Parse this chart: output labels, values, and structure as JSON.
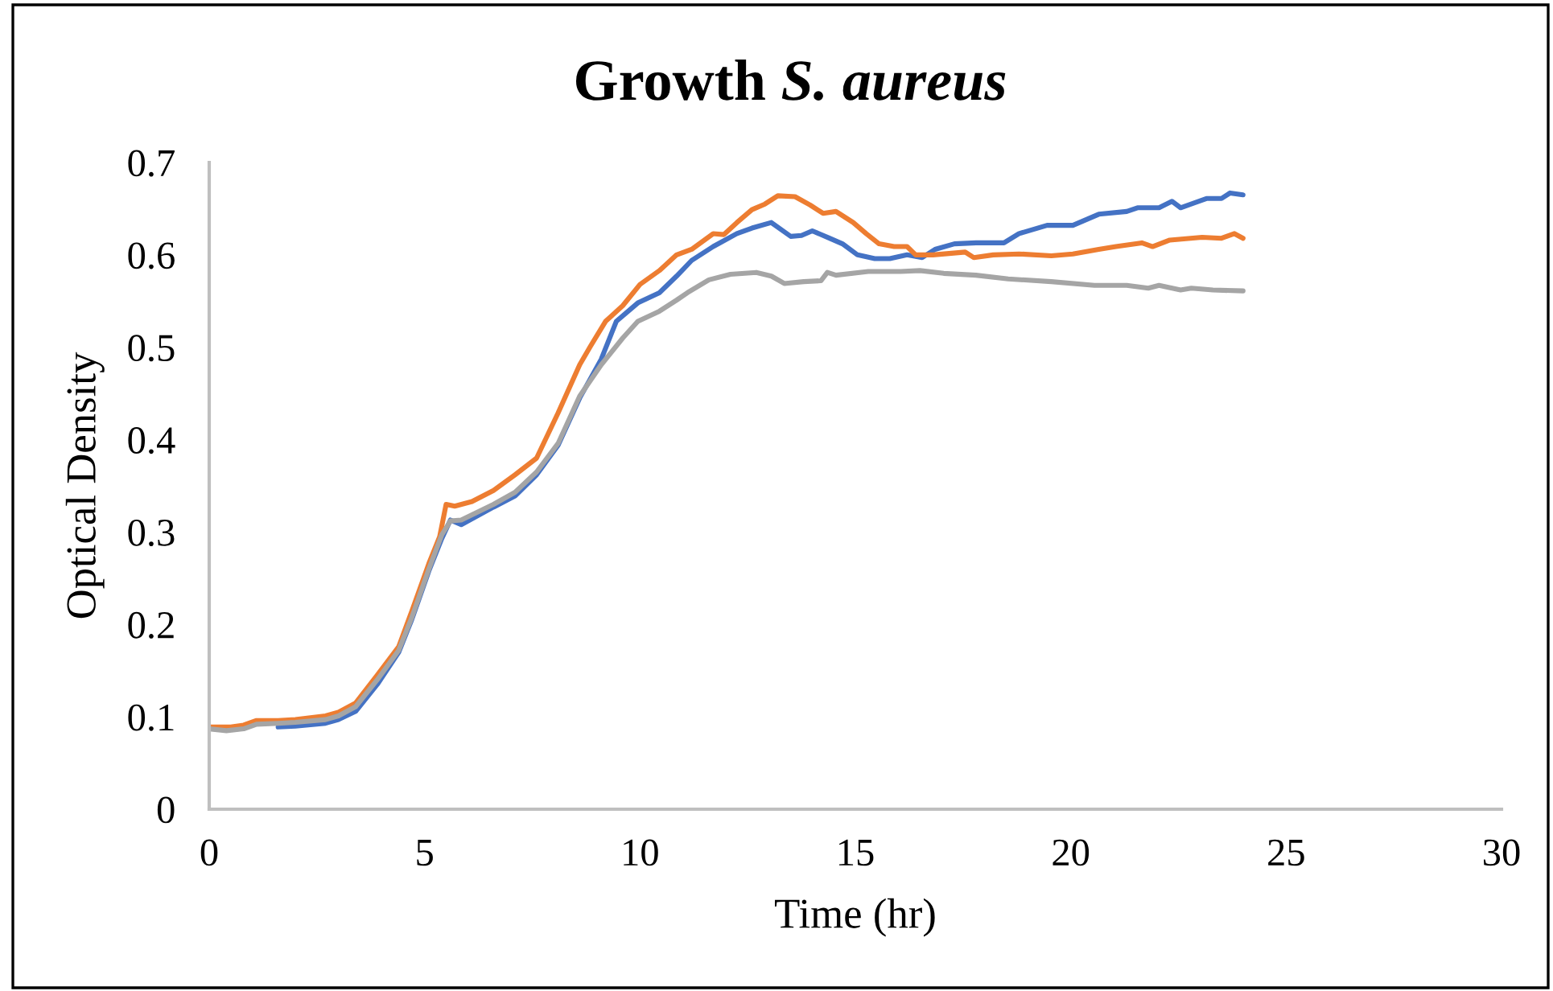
{
  "chart_data": {
    "type": "line",
    "title": "Growth S. aureus",
    "xlabel": "Time (hr)",
    "ylabel": "Optical Density",
    "xlim": [
      0,
      30
    ],
    "ylim": [
      0,
      0.7
    ],
    "xticks": [
      0,
      5,
      10,
      15,
      20,
      25,
      30
    ],
    "yticks": [
      0,
      0.1,
      0.2,
      0.3,
      0.4,
      0.5,
      0.6,
      0.7
    ],
    "series": [
      {
        "color": "#4472c4",
        "x": [
          1.6,
          2.0,
          2.7,
          3.0,
          3.4,
          3.9,
          4.4,
          4.7,
          5.1,
          5.4,
          5.6,
          5.85,
          6.6,
          7.1,
          7.6,
          8.1,
          8.6,
          9.1,
          9.45,
          9.95,
          10.45,
          10.85,
          11.2,
          11.7,
          12.25,
          12.6,
          13.05,
          13.5,
          13.75,
          14.0,
          14.4,
          14.7,
          15.05,
          15.45,
          15.8,
          16.2,
          16.55,
          16.85,
          17.3,
          17.8,
          18.45,
          18.8,
          19.45,
          20.05,
          20.65,
          21.3,
          21.55,
          22.05,
          22.35,
          22.55,
          23.15,
          23.5,
          23.7,
          24.0
        ],
        "values": [
          0.089,
          0.09,
          0.093,
          0.097,
          0.106,
          0.135,
          0.17,
          0.205,
          0.258,
          0.293,
          0.313,
          0.308,
          0.327,
          0.339,
          0.362,
          0.394,
          0.445,
          0.487,
          0.528,
          0.548,
          0.559,
          0.577,
          0.594,
          0.609,
          0.623,
          0.629,
          0.635,
          0.62,
          0.621,
          0.626,
          0.618,
          0.612,
          0.6,
          0.596,
          0.596,
          0.6,
          0.597,
          0.606,
          0.612,
          0.613,
          0.613,
          0.623,
          0.632,
          0.632,
          0.644,
          0.647,
          0.651,
          0.651,
          0.658,
          0.651,
          0.661,
          0.661,
          0.667,
          0.665
        ]
      },
      {
        "color": "#ed7d31",
        "x": [
          0,
          0.5,
          0.8,
          1.1,
          1.6,
          2.0,
          2.7,
          3.0,
          3.4,
          3.9,
          4.4,
          4.7,
          5.1,
          5.35,
          5.5,
          5.7,
          6.1,
          6.6,
          7.1,
          7.6,
          8.1,
          8.6,
          8.85,
          9.2,
          9.6,
          10.0,
          10.45,
          10.85,
          11.2,
          11.7,
          11.95,
          12.25,
          12.6,
          12.9,
          13.2,
          13.6,
          13.95,
          14.25,
          14.55,
          14.95,
          15.25,
          15.55,
          15.9,
          16.2,
          16.4,
          16.8,
          17.55,
          17.75,
          18.2,
          18.8,
          19.55,
          20.05,
          20.65,
          21.05,
          21.65,
          21.9,
          22.3,
          23.05,
          23.5,
          23.8,
          24.0
        ],
        "values": [
          0.089,
          0.089,
          0.091,
          0.096,
          0.096,
          0.097,
          0.101,
          0.105,
          0.115,
          0.145,
          0.176,
          0.214,
          0.266,
          0.295,
          0.33,
          0.328,
          0.333,
          0.345,
          0.362,
          0.38,
          0.429,
          0.481,
          0.501,
          0.528,
          0.545,
          0.568,
          0.583,
          0.6,
          0.606,
          0.623,
          0.622,
          0.635,
          0.649,
          0.655,
          0.664,
          0.663,
          0.654,
          0.645,
          0.647,
          0.635,
          0.623,
          0.612,
          0.609,
          0.609,
          0.6,
          0.6,
          0.603,
          0.597,
          0.6,
          0.601,
          0.599,
          0.601,
          0.606,
          0.609,
          0.613,
          0.609,
          0.616,
          0.619,
          0.618,
          0.623,
          0.618
        ]
      },
      {
        "color": "#a5a5a5",
        "x": [
          0,
          0.4,
          0.8,
          1.1,
          1.6,
          2.0,
          2.7,
          3.0,
          3.4,
          3.9,
          4.4,
          4.7,
          5.1,
          5.4,
          5.6,
          5.85,
          6.6,
          7.1,
          7.6,
          8.1,
          8.6,
          9.1,
          9.6,
          9.95,
          10.45,
          10.85,
          11.1,
          11.6,
          12.1,
          12.7,
          13.05,
          13.35,
          13.8,
          14.2,
          14.35,
          14.55,
          15.3,
          16.05,
          16.5,
          17.05,
          17.8,
          18.55,
          19.55,
          20.55,
          21.3,
          21.8,
          22.05,
          22.55,
          22.8,
          23.3,
          24.0
        ],
        "values": [
          0.087,
          0.085,
          0.087,
          0.092,
          0.093,
          0.094,
          0.097,
          0.101,
          0.111,
          0.14,
          0.172,
          0.207,
          0.26,
          0.297,
          0.312,
          0.313,
          0.33,
          0.343,
          0.365,
          0.396,
          0.447,
          0.481,
          0.51,
          0.528,
          0.539,
          0.551,
          0.559,
          0.573,
          0.579,
          0.581,
          0.577,
          0.569,
          0.571,
          0.572,
          0.581,
          0.578,
          0.582,
          0.582,
          0.583,
          0.58,
          0.578,
          0.574,
          0.571,
          0.567,
          0.567,
          0.564,
          0.567,
          0.562,
          0.564,
          0.562,
          0.561
        ]
      }
    ]
  }
}
